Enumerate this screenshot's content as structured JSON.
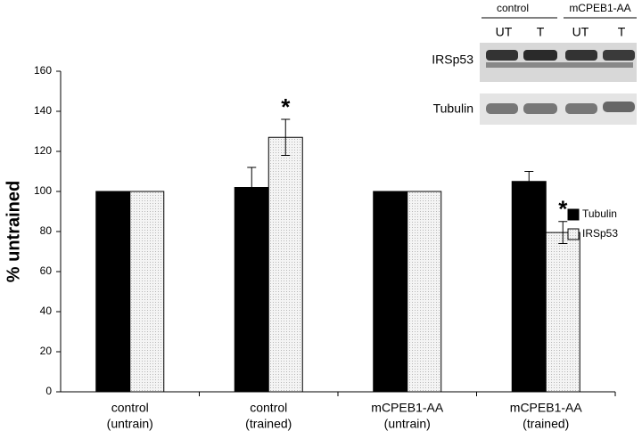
{
  "chart_data": {
    "type": "bar",
    "ylabel": "% untrained",
    "categories": [
      [
        "control",
        "(untrain)"
      ],
      [
        "control",
        "(trained)"
      ],
      [
        "mCPEB1-AA",
        "(untrain)"
      ],
      [
        "mCPEB1-AA",
        "(trained)"
      ]
    ],
    "series": [
      {
        "name": "Tubulin",
        "color": "#000000",
        "values": [
          100,
          102,
          100,
          105
        ],
        "errors": [
          null,
          10,
          null,
          5
        ]
      },
      {
        "name": "IRSp53",
        "color": "#e4e4e4",
        "values": [
          100,
          127,
          100,
          79.5
        ],
        "errors": [
          null,
          9,
          null,
          5.5
        ]
      }
    ],
    "annotations": [
      {
        "text": "*",
        "category": 1,
        "series": 1
      },
      {
        "text": "*",
        "category": 3,
        "series": 1
      }
    ],
    "ylim": [
      0,
      160
    ],
    "yticks": [
      0,
      20,
      40,
      60,
      80,
      100,
      120,
      140,
      160
    ],
    "grid": false,
    "legend": "right"
  },
  "blot": {
    "groups": [
      "control",
      "mCPEB1-AA"
    ],
    "lanes": [
      "UT",
      "T",
      "UT",
      "T"
    ],
    "rows": [
      "IRSp53",
      "Tubulin"
    ]
  }
}
